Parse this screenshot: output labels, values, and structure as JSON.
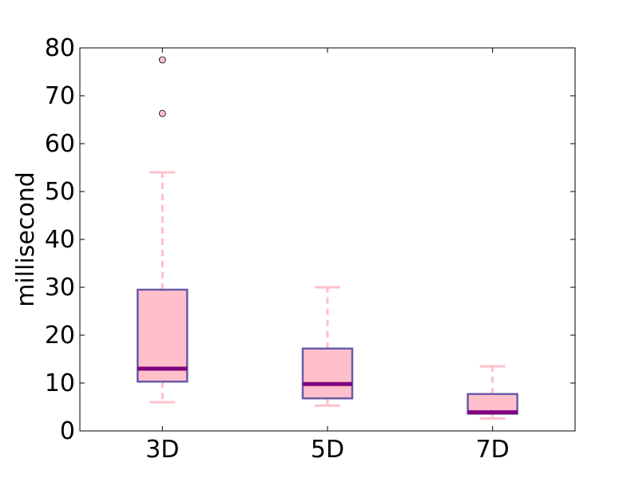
{
  "chart_data": {
    "type": "box",
    "ylabel": "millisecond",
    "ylim": [
      0,
      80
    ],
    "yticks": [
      0,
      10,
      20,
      30,
      40,
      50,
      60,
      70,
      80
    ],
    "categories": [
      "3D",
      "5D",
      "7D"
    ],
    "boxes": [
      {
        "category": "3D",
        "whisker_low": 6,
        "q1": 10.3,
        "median": 13,
        "q3": 29.5,
        "whisker_high": 54,
        "outliers": [
          66.3,
          77.5
        ]
      },
      {
        "category": "5D",
        "whisker_low": 5.3,
        "q1": 6.8,
        "median": 9.8,
        "q3": 17.2,
        "whisker_high": 30,
        "outliers": []
      },
      {
        "category": "7D",
        "whisker_low": 2.6,
        "q1": 3.6,
        "median": 3.9,
        "q3": 7.7,
        "whisker_high": 13.5,
        "outliers": []
      }
    ],
    "grid": false,
    "colors": {
      "box_fill": "#ffc0cb",
      "box_edge": "#6a5aaa",
      "median": "#800080",
      "whisker": "#ffc0cb",
      "outlier_fill": "#ffc0cb"
    }
  }
}
